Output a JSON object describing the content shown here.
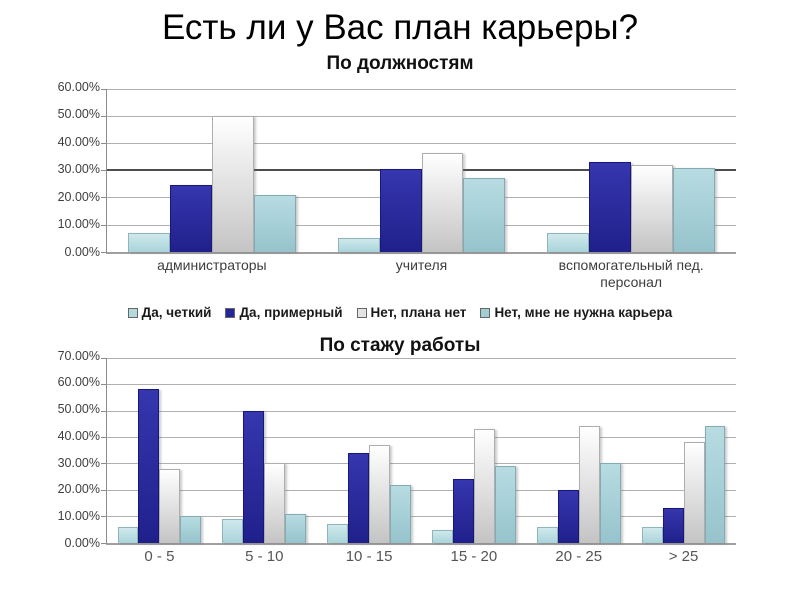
{
  "title": "Есть ли у Вас план карьеры?",
  "palette": [
    {
      "name": "Да, четкий",
      "fill_top": "#cfe9ed",
      "fill_bottom": "#a9d4da",
      "border": "#8fb4ba",
      "swatch": "#b3d9df"
    },
    {
      "name": "Да, примерный",
      "fill_top": "#3636ae",
      "fill_bottom": "#20208c",
      "border": "#18187a",
      "swatch": "#26269b"
    },
    {
      "name": "Нет, плана нет",
      "fill_top": "#ffffff",
      "fill_bottom": "#c4c4c4",
      "border": "#aeaeae",
      "swatch": "#e3e3e3"
    },
    {
      "name": "Нет, мне не нужна карьера",
      "fill_top": "#b7dce2",
      "fill_bottom": "#96c3cc",
      "border": "#84aab2",
      "swatch": "#a3cdd5"
    }
  ],
  "chart_data": [
    {
      "type": "bar",
      "title": "По должностям",
      "categories": [
        "администраторы",
        "учителя",
        "вспомогательный пед. персонал"
      ],
      "series": [
        {
          "name": "Да, четкий",
          "values": [
            7,
            5,
            7
          ]
        },
        {
          "name": "Да, примерный",
          "values": [
            24.5,
            30.5,
            33
          ]
        },
        {
          "name": "Нет, плана нет",
          "values": [
            50,
            36.5,
            32
          ]
        },
        {
          "name": "Нет, мне не нужна карьера",
          "values": [
            21,
            27,
            31
          ]
        }
      ],
      "ylim": [
        0,
        60
      ],
      "ytick_step": 10,
      "yticks": [
        "0.00%",
        "10.00%",
        "20.00%",
        "30.00%",
        "40.00%",
        "50.00%",
        "60.00%"
      ],
      "ref_line": 30,
      "grid": true,
      "legend_position": "bottom"
    },
    {
      "type": "bar",
      "title": "По стажу работы",
      "categories": [
        "0 - 5",
        "5 - 10",
        "10 - 15",
        "15 - 20",
        "20 - 25",
        "> 25"
      ],
      "series": [
        {
          "name": "Да, четкий",
          "values": [
            6,
            9,
            7,
            5,
            6,
            6
          ]
        },
        {
          "name": "Да, примерный",
          "values": [
            58,
            50,
            34,
            24,
            20,
            13
          ]
        },
        {
          "name": "Нет, плана нет",
          "values": [
            28,
            30,
            37,
            43,
            44,
            38
          ]
        },
        {
          "name": "Нет, мне не нужна карьера",
          "values": [
            10,
            11,
            22,
            29,
            30,
            44
          ]
        }
      ],
      "ylim": [
        0,
        70
      ],
      "ytick_step": 10,
      "yticks": [
        "0.00%",
        "10.00%",
        "20.00%",
        "30.00%",
        "40.00%",
        "50.00%",
        "60.00%",
        "70.00%"
      ],
      "grid": true,
      "legend_position": "none"
    }
  ]
}
